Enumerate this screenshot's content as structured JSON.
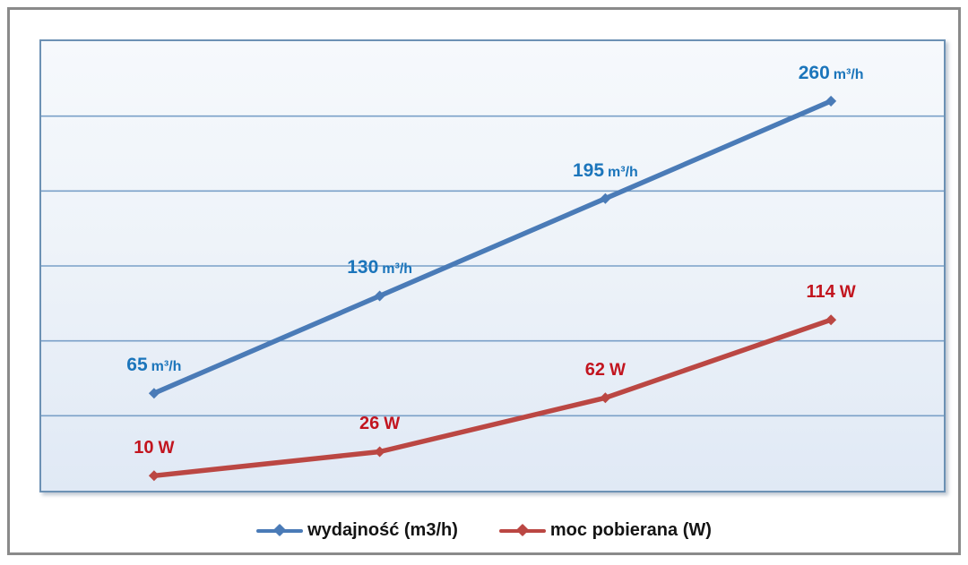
{
  "chart_data": {
    "type": "line",
    "title": "",
    "axis": {
      "ymin": 0,
      "ymax": 300,
      "y_major_unit": 50,
      "y_tick_labels_visible": false,
      "x_tick_labels_visible": false,
      "grid": "horizontal"
    },
    "series": [
      {
        "name": "wydajność (m3/h)",
        "color": "#4a7bb7",
        "label_color": "#1b75bb",
        "values": [
          65,
          130,
          195,
          260
        ],
        "point_labels": [
          {
            "value": "65",
            "unit": "m³/h"
          },
          {
            "value": "130",
            "unit": "m³/h"
          },
          {
            "value": "195",
            "unit": "m³/h"
          },
          {
            "value": "260",
            "unit": "m³/h"
          }
        ]
      },
      {
        "name": "moc pobierana (W)",
        "color": "#bb4743",
        "label_color": "#c2151f",
        "values": [
          10,
          26,
          62,
          114
        ],
        "point_labels": [
          {
            "value": "10",
            "unit": "W"
          },
          {
            "value": "26",
            "unit": "W"
          },
          {
            "value": "62",
            "unit": "W"
          },
          {
            "value": "114",
            "unit": "W"
          }
        ]
      }
    ],
    "style": {
      "gridline_color": "#7aa0c8",
      "plot_border_color": "#6c91b4",
      "frame_border_color": "#8a8a8a",
      "marker_shape": "diamond"
    },
    "legend_position": "bottom"
  },
  "legend": {
    "items": [
      {
        "label": "wydajność (m3/h)"
      },
      {
        "label": "moc pobierana (W)"
      }
    ]
  }
}
